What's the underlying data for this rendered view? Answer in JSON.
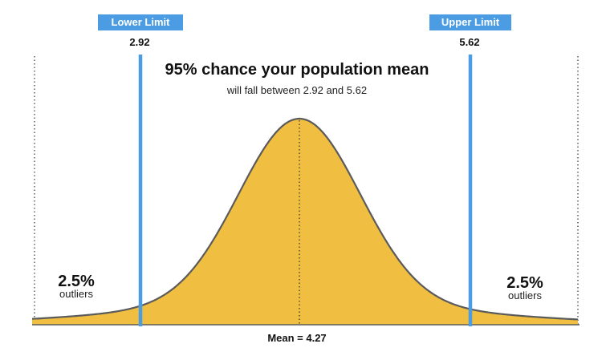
{
  "colors": {
    "curve_fill": "#F0BE40",
    "curve_stroke": "#5b5b5b",
    "limit_line": "#4B9CE2",
    "tag_bg": "#4B9CE2"
  },
  "lower_limit": {
    "tag": "Lower Limit",
    "value": "2.92"
  },
  "upper_limit": {
    "tag": "Upper Limit",
    "value": "5.62"
  },
  "title": "95% chance your population mean",
  "subtitle": "will fall between 2.92 and 5.62",
  "left_tail": {
    "percent": "2.5%",
    "label": "outliers"
  },
  "right_tail": {
    "percent": "2.5%",
    "label": "outliers"
  },
  "mean": {
    "label": "Mean = 4.27"
  }
}
